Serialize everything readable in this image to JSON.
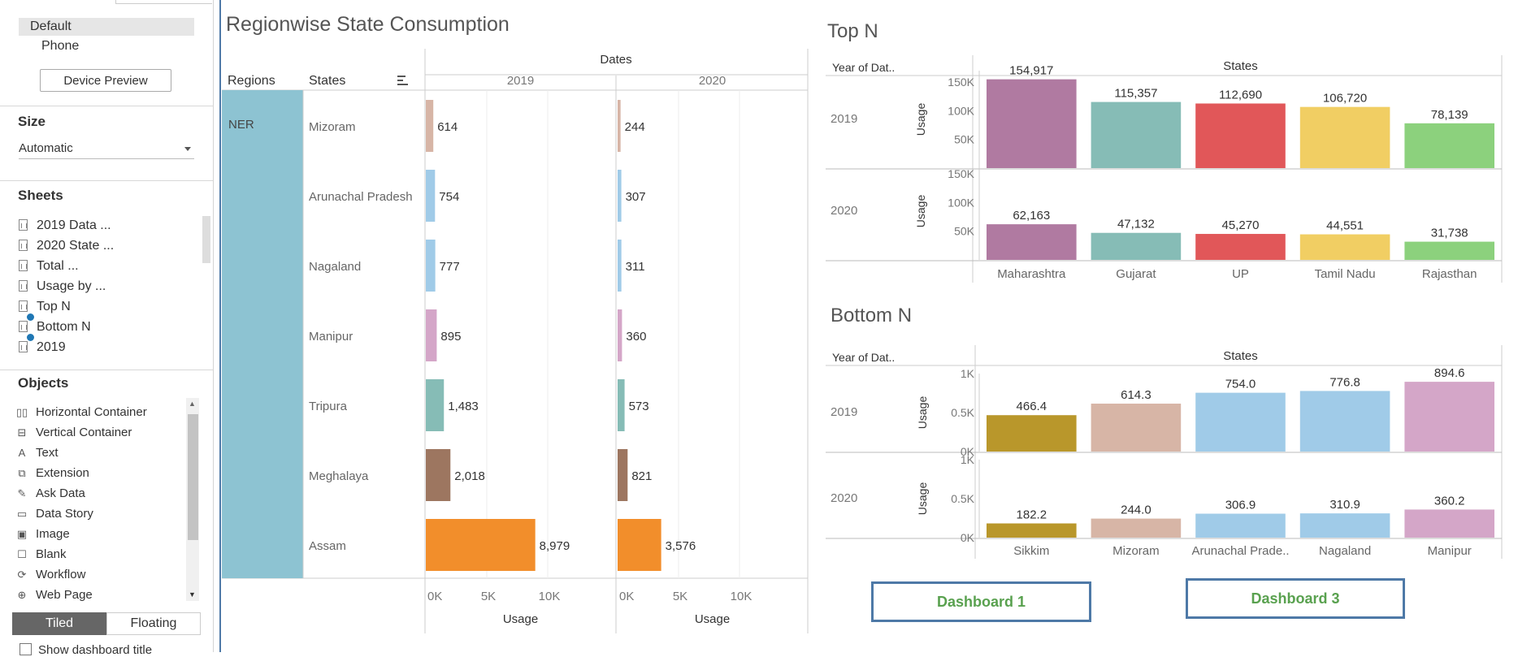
{
  "left_panel": {
    "devices": {
      "default_label": "Default",
      "phone_label": "Phone",
      "device_preview_label": "Device Preview"
    },
    "size": {
      "title": "Size",
      "value": "Automatic"
    },
    "sheets": {
      "title": "Sheets",
      "items": [
        {
          "label": "2019 Data ...",
          "checked": false
        },
        {
          "label": "2020 State ...",
          "checked": false
        },
        {
          "label": "Total ...",
          "checked": false
        },
        {
          "label": "Usage by ...",
          "checked": false
        },
        {
          "label": "Top N",
          "checked": true
        },
        {
          "label": "Bottom N",
          "checked": true
        },
        {
          "label": "2019",
          "checked": false
        }
      ]
    },
    "objects": {
      "title": "Objects",
      "items": [
        {
          "label": "Horizontal Container",
          "icon": "horizontal-container-icon",
          "glyph": "▯▯"
        },
        {
          "label": "Vertical Container",
          "icon": "vertical-container-icon",
          "glyph": "⊟"
        },
        {
          "label": "Text",
          "icon": "text-icon",
          "glyph": "A"
        },
        {
          "label": "Extension",
          "icon": "extension-icon",
          "glyph": "⧉"
        },
        {
          "label": "Ask Data",
          "icon": "ask-data-icon",
          "glyph": "✎"
        },
        {
          "label": "Data Story",
          "icon": "data-story-icon",
          "glyph": "▭"
        },
        {
          "label": "Image",
          "icon": "image-icon",
          "glyph": "▣"
        },
        {
          "label": "Blank",
          "icon": "blank-icon",
          "glyph": "☐"
        },
        {
          "label": "Workflow",
          "icon": "workflow-icon",
          "glyph": "⟳"
        },
        {
          "label": "Web Page",
          "icon": "web-page-icon",
          "glyph": "⊕"
        }
      ]
    },
    "layout_toggle": {
      "tiled_label": "Tiled",
      "floating_label": "Floating",
      "active": "Tiled"
    },
    "show_title_label": "Show dashboard title"
  },
  "chart_data": [
    {
      "type": "bar",
      "title": "Regionwise State Consumption",
      "orientation": "horizontal",
      "column_header": "Dates",
      "columns": [
        "2019",
        "2020"
      ],
      "row_headers": [
        "Regions",
        "States"
      ],
      "region": "NER",
      "categories": [
        "Mizoram",
        "Arunachal Pradesh",
        "Nagaland",
        "Manipur",
        "Tripura",
        "Meghalaya",
        "Assam"
      ],
      "colors": [
        "#d7b5a6",
        "#a0cbe8",
        "#a0cbe8",
        "#d4a6c8",
        "#86bcb6",
        "#9d7660",
        "#f28e2b"
      ],
      "series": [
        {
          "name": "2019",
          "values": [
            614,
            754,
            777,
            895,
            1483,
            2018,
            8979
          ],
          "labels": [
            "614",
            "754",
            "777",
            "895",
            "1,483",
            "2,018",
            "8,979"
          ]
        },
        {
          "name": "2020",
          "values": [
            244,
            307,
            311,
            360,
            573,
            821,
            3576
          ],
          "labels": [
            "244",
            "307",
            "311",
            "360",
            "573",
            "821",
            "3,576"
          ]
        }
      ],
      "xlabel": "Usage",
      "xlim": [
        0,
        12000
      ],
      "xticks": [
        0,
        5000,
        10000
      ],
      "xtick_labels": [
        "0K",
        "5K",
        "10K"
      ],
      "region_color": "#8dc3d2"
    },
    {
      "type": "bar",
      "title": "Top N",
      "row_header": "Year of Dat..",
      "column_header": "States",
      "categories": [
        "Maharashtra",
        "Gujarat",
        "UP",
        "Tamil Nadu",
        "Rajasthan"
      ],
      "colors": [
        "#b07aa1",
        "#86bcb6",
        "#e15759",
        "#f1ce63",
        "#8cd17d"
      ],
      "series": [
        {
          "name": "2019",
          "values": [
            154917,
            115357,
            112690,
            106720,
            78139
          ],
          "labels": [
            "154,917",
            "115,357",
            "112,690",
            "106,720",
            "78,139"
          ]
        },
        {
          "name": "2020",
          "values": [
            62163,
            47132,
            45270,
            44551,
            31738
          ],
          "labels": [
            "62,163",
            "47,132",
            "45,270",
            "44,551",
            "31,738"
          ]
        }
      ],
      "ylabel": "Usage",
      "ylim": [
        0,
        170000
      ],
      "yticks": [
        50000,
        100000,
        150000
      ],
      "ytick_labels": [
        "50K",
        "100K",
        "150K"
      ]
    },
    {
      "type": "bar",
      "title": "Bottom N",
      "row_header": "Year of Dat..",
      "column_header": "States",
      "categories": [
        "Sikkim",
        "Mizoram",
        "Arunachal Prade..",
        "Nagaland",
        "Manipur"
      ],
      "colors": [
        "#b9972b",
        "#d7b5a6",
        "#a0cbe8",
        "#a0cbe8",
        "#d4a6c8"
      ],
      "series": [
        {
          "name": "2019",
          "values": [
            466.4,
            614.3,
            754.0,
            776.8,
            894.6
          ],
          "labels": [
            "466.4",
            "614.3",
            "754.0",
            "776.8",
            "894.6"
          ]
        },
        {
          "name": "2020",
          "values": [
            182.2,
            244.0,
            306.9,
            310.9,
            360.2
          ],
          "labels": [
            "182.2",
            "244.0",
            "306.9",
            "310.9",
            "360.2"
          ]
        }
      ],
      "ylabel": "Usage",
      "ylim": [
        0,
        1000
      ],
      "yticks": [
        0,
        500,
        1000
      ],
      "ytick_labels": [
        "0K",
        "0.5K",
        "1K"
      ]
    }
  ],
  "dashboard_buttons": {
    "dash1_label": "Dashboard 1",
    "dash3_label": "Dashboard 3"
  }
}
